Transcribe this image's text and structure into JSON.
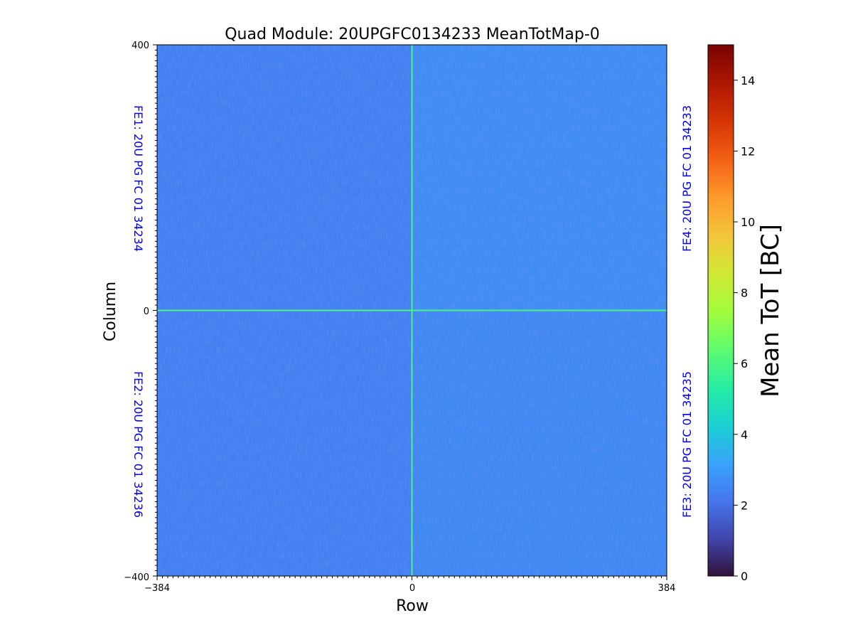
{
  "chart_data": {
    "type": "heatmap",
    "title": "Quad Module: 20UPGFC0134233 MeanTotMap-0",
    "xlabel": "Row",
    "ylabel": "Column",
    "xlim": [
      -384,
      384
    ],
    "ylim": [
      -400,
      400
    ],
    "x_ticks": [
      "−384",
      "0",
      "384"
    ],
    "y_ticks": [
      "400",
      "0",
      "−400"
    ],
    "colorbar": {
      "label": "Mean ToT [BC]",
      "range": [
        0,
        15
      ],
      "ticks": [
        "0",
        "2",
        "4",
        "6",
        "8",
        "10",
        "12",
        "14"
      ],
      "colormap": "turbo"
    },
    "chip_labels": [
      {
        "quadrant": "top-left",
        "text": "FE1: 20U PG FC 01 34234"
      },
      {
        "quadrant": "bottom-left",
        "text": "FE2: 20U PG FC 01 34236"
      },
      {
        "quadrant": "bottom-right",
        "text": "FE3: 20U PG FC 01 34235"
      },
      {
        "quadrant": "top-right",
        "text": "FE4: 20U PG FC 01 34233"
      }
    ],
    "typical_value": 2.5,
    "quadrant_levels": {
      "top-left": 2.4,
      "top-right": 2.7,
      "bottom-left": 2.4,
      "bottom-right": 2.6
    },
    "center_line_value": 6,
    "chip_label_color": "#0000ff",
    "background_color": "#ffffff"
  }
}
